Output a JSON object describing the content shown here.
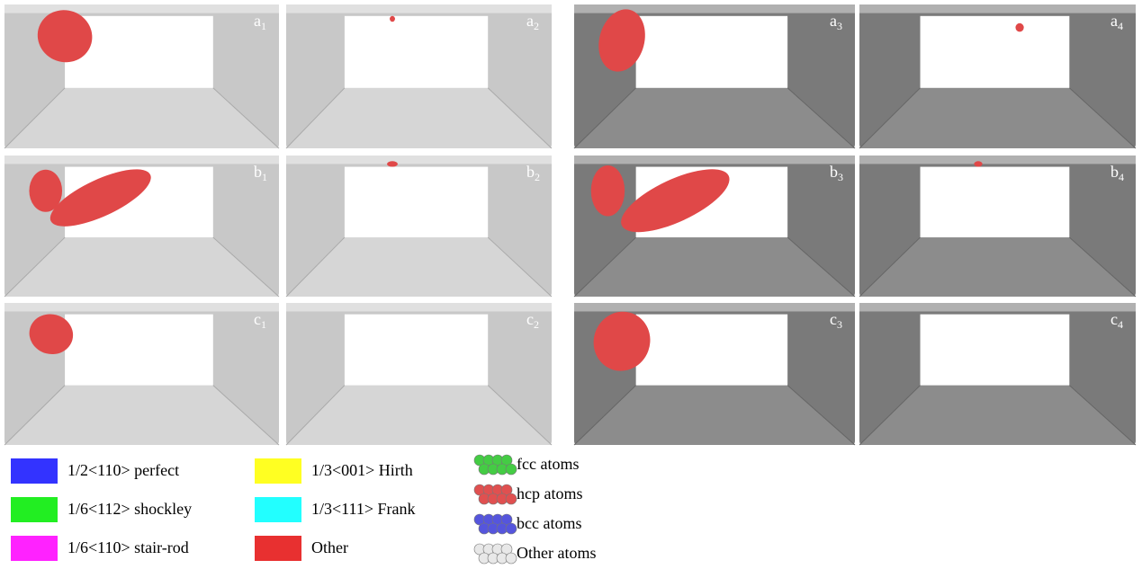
{
  "panels": [
    {
      "letter": "a",
      "sub": "1"
    },
    {
      "letter": "a",
      "sub": "2"
    },
    {
      "letter": "a",
      "sub": "3"
    },
    {
      "letter": "a",
      "sub": "4"
    },
    {
      "letter": "b",
      "sub": "1"
    },
    {
      "letter": "b",
      "sub": "2"
    },
    {
      "letter": "b",
      "sub": "3"
    },
    {
      "letter": "b",
      "sub": "4"
    },
    {
      "letter": "c",
      "sub": "1"
    },
    {
      "letter": "c",
      "sub": "2"
    },
    {
      "letter": "c",
      "sub": "3"
    },
    {
      "letter": "c",
      "sub": "4"
    }
  ],
  "legend": {
    "dislocations": [
      {
        "label": "1/2<110> perfect",
        "color": "#3333ff"
      },
      {
        "label": "1/6<112> shockley",
        "color": "#22ee22"
      },
      {
        "label": "1/6<110> stair-rod",
        "color": "#ff22ff"
      },
      {
        "label": "1/3<001> Hirth",
        "color": "#ffff22"
      },
      {
        "label": "1/3<111> Frank",
        "color": "#22ffff"
      },
      {
        "label": "Other",
        "color": "#e83030"
      }
    ],
    "atoms": [
      {
        "label": "fcc atoms",
        "color": "#44cc44"
      },
      {
        "label": "hcp atoms",
        "color": "#e05050"
      },
      {
        "label": "bcc atoms",
        "color": "#5555dd"
      },
      {
        "label": "Other atoms",
        "color": "#e8e8e8"
      }
    ]
  }
}
